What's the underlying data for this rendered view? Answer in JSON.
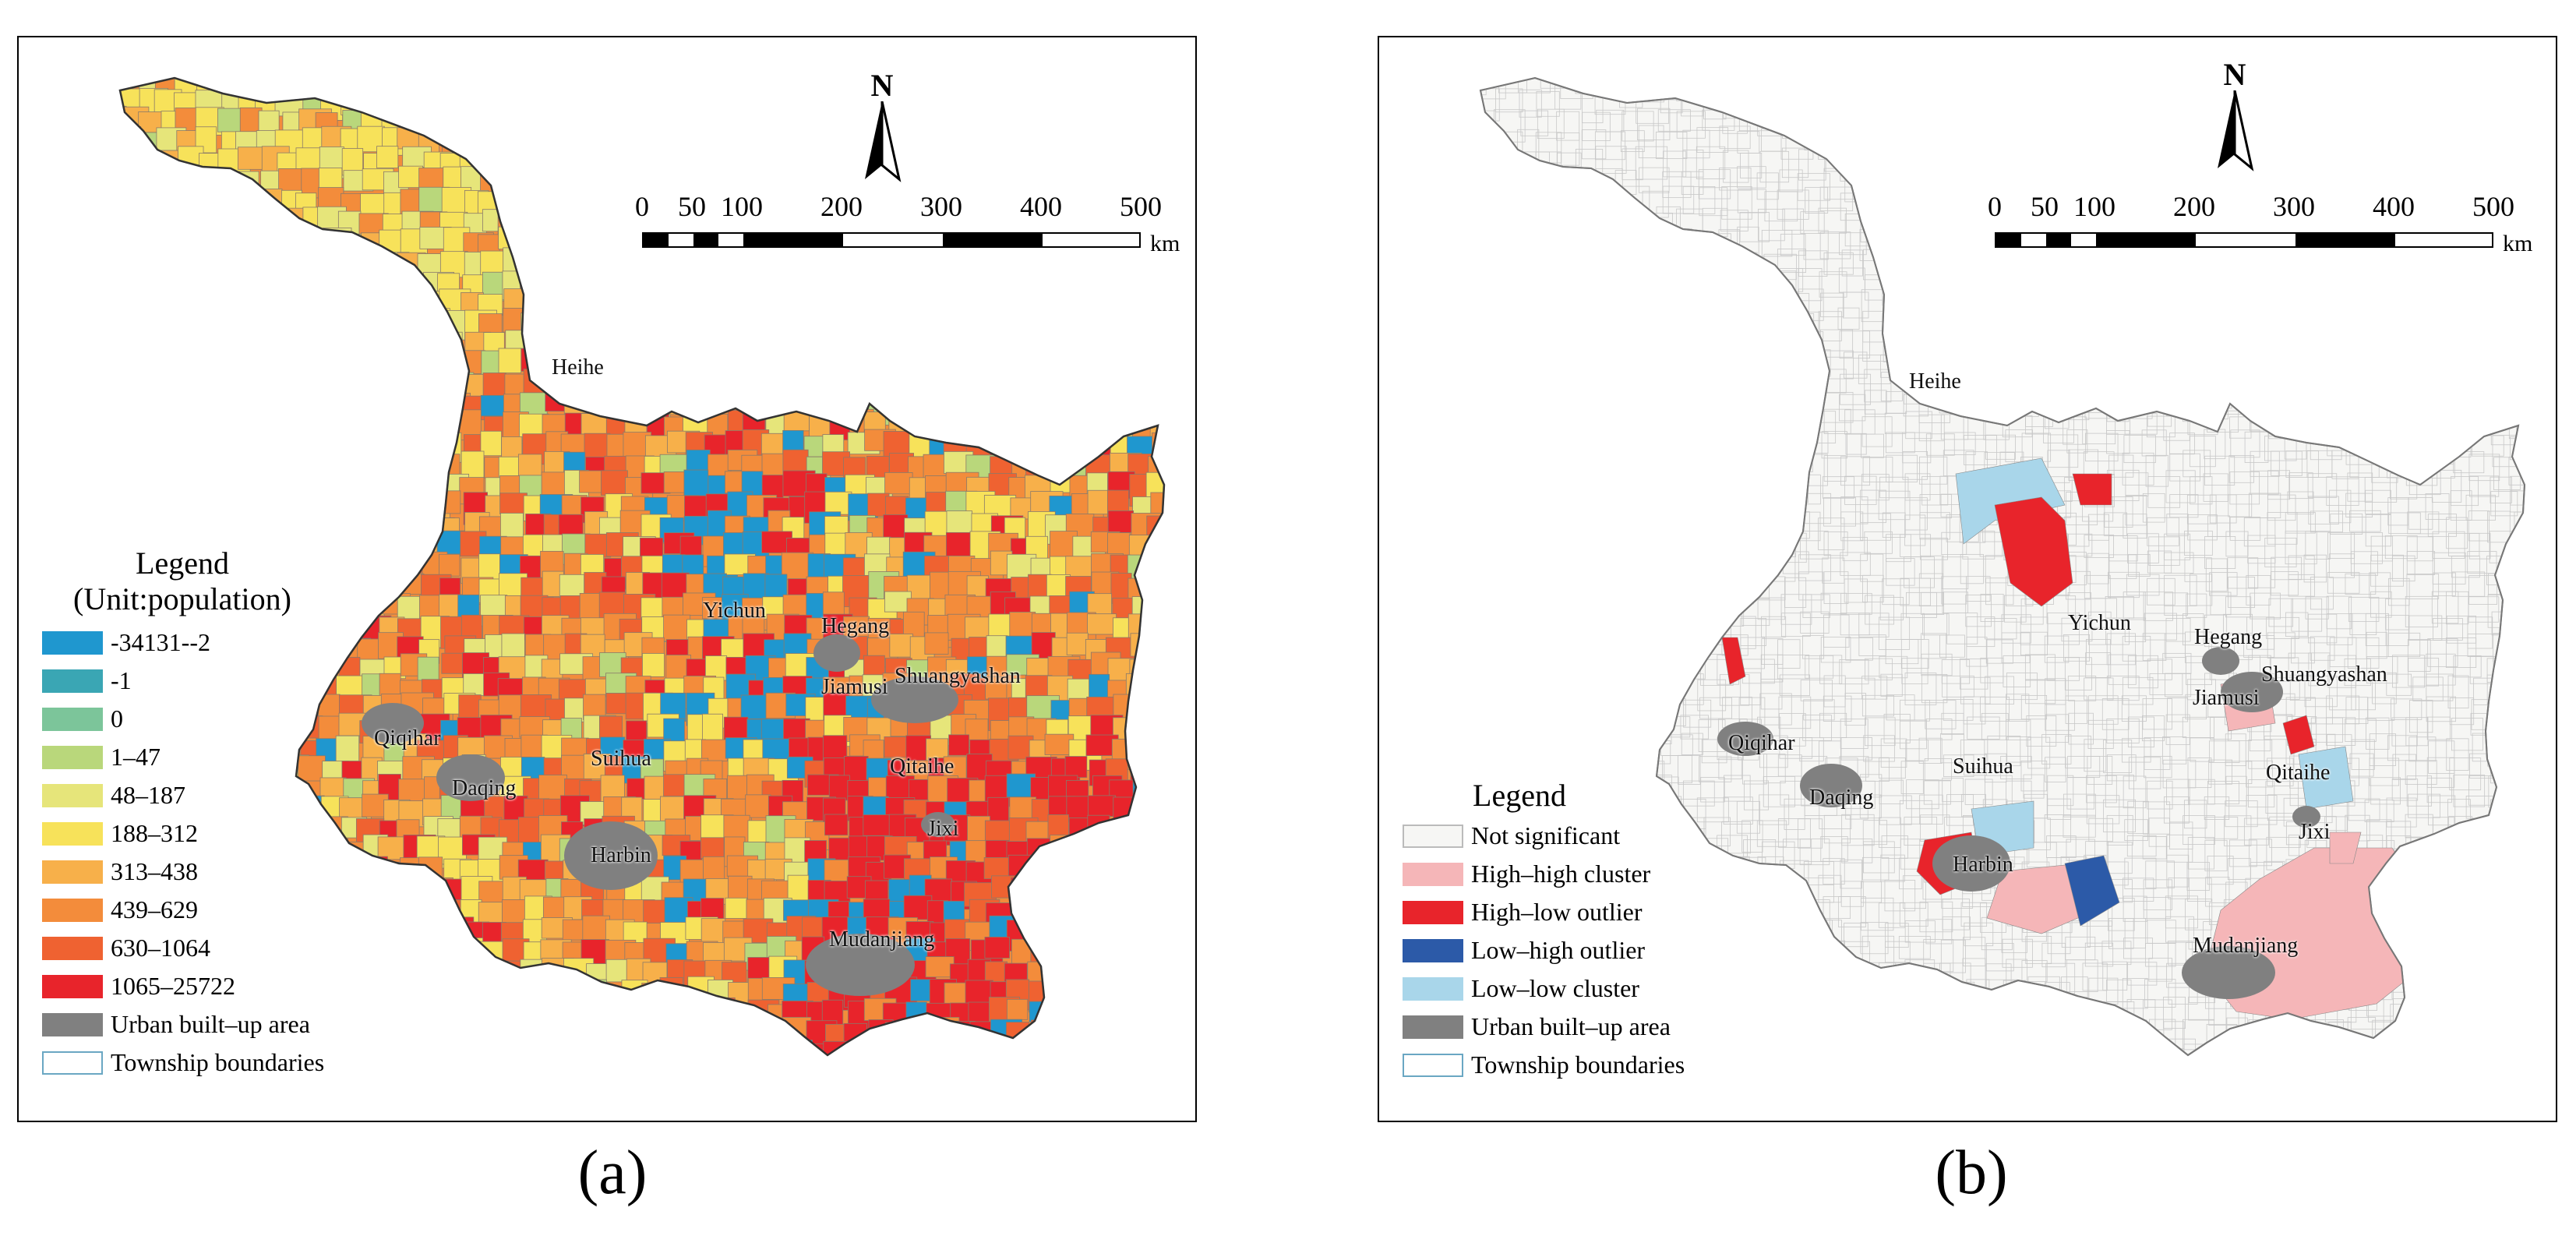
{
  "panels": [
    {
      "caption": "(a)",
      "north": "N",
      "scale_ticks": [
        "0",
        "50",
        "100",
        "200",
        "300",
        "400",
        "500"
      ],
      "scale_unit": "km",
      "legend": {
        "title_line1": "Legend",
        "title_line2": "(Unit:population)",
        "items": [
          {
            "label": "-34131--2",
            "color": "#1f97cf"
          },
          {
            "label": "-1",
            "color": "#3aa6b4"
          },
          {
            "label": "0",
            "color": "#7cc59a"
          },
          {
            "label": "1–47",
            "color": "#b9d77b"
          },
          {
            "label": "48–187",
            "color": "#e6e57a"
          },
          {
            "label": "188–312",
            "color": "#f7e25a"
          },
          {
            "label": "313–438",
            "color": "#f7b04a"
          },
          {
            "label": "439–629",
            "color": "#f38c3b"
          },
          {
            "label": "630–1064",
            "color": "#ef6231"
          },
          {
            "label": "1065–25722",
            "color": "#e8242b"
          },
          {
            "label": "Urban built–up area",
            "color": "#808080"
          },
          {
            "label": "Township boundaries",
            "color": "#ffffff",
            "border": "#6aa7c3"
          }
        ]
      },
      "cities": [
        "Heihe",
        "Yichun",
        "Hegang",
        "Jiamusi",
        "Shuangyashan",
        "Qiqihar",
        "Daqing",
        "Suihua",
        "Qitaihe",
        "Harbin",
        "Jixi",
        "Mudanjiang"
      ]
    },
    {
      "caption": "(b)",
      "north": "N",
      "scale_ticks": [
        "0",
        "50",
        "100",
        "200",
        "300",
        "400",
        "500"
      ],
      "scale_unit": "km",
      "legend": {
        "title_line1": "Legend",
        "items": [
          {
            "label": "Not significant",
            "color": "#f6f6f4",
            "border": "#bbbbbb"
          },
          {
            "label": "High–high cluster",
            "color": "#f5b6b8"
          },
          {
            "label": "High–low outlier",
            "color": "#e8242b"
          },
          {
            "label": "Low–high outlier",
            "color": "#2c5aa8"
          },
          {
            "label": "Low–low cluster",
            "color": "#a9d6ea"
          },
          {
            "label": "Urban built–up area",
            "color": "#808080"
          },
          {
            "label": "Township boundaries",
            "color": "#ffffff",
            "border": "#6aa7c3"
          }
        ]
      },
      "cities": [
        "Heihe",
        "Yichun",
        "Hegang",
        "Shuangyashan",
        "Jiamusi",
        "Qiqihar",
        "Suihua",
        "Qitaihe",
        "Daqing",
        "Jixi",
        "Harbin",
        "Mudanjiang"
      ]
    }
  ]
}
